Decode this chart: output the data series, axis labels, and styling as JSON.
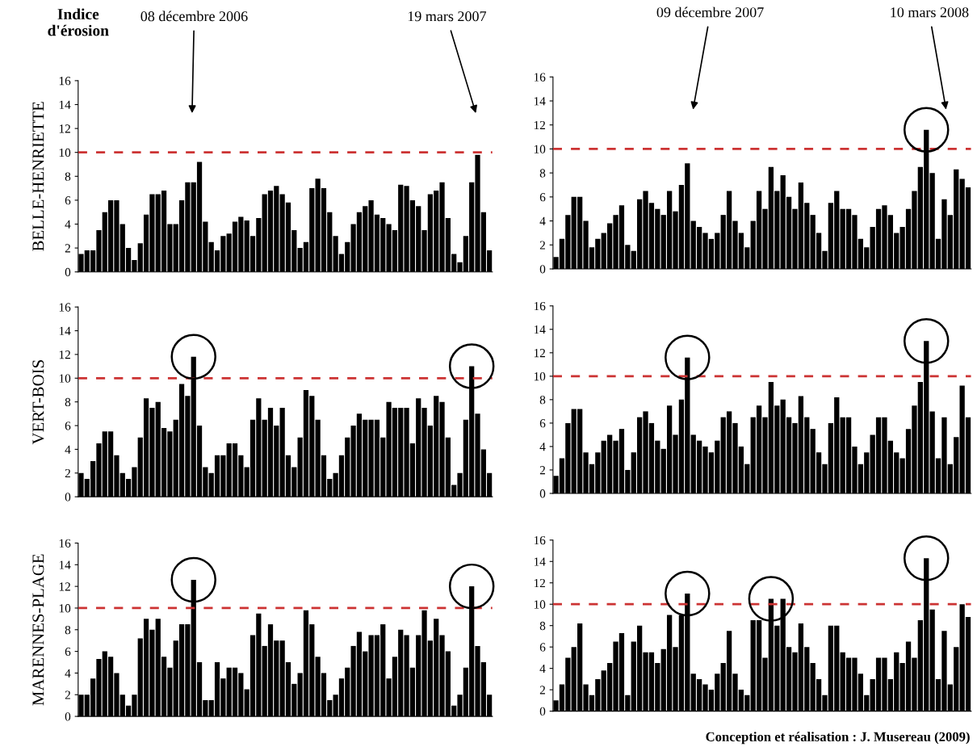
{
  "chart_data": [
    {
      "type": "bar",
      "title": "Indice\nd'érosion",
      "ylabel": "BELLE-HENRIETTE",
      "annotations": [
        "08 décembre 2006",
        "19 mars 2007"
      ],
      "categories": [
        null,
        null,
        null,
        null,
        null,
        null,
        null,
        null,
        null,
        null,
        null,
        null,
        null,
        null,
        null,
        null,
        null,
        null,
        null,
        null,
        null,
        null,
        null,
        null,
        null,
        null,
        null,
        null,
        null,
        null,
        null,
        null,
        null,
        null,
        null,
        null,
        null,
        null,
        null,
        null,
        null,
        null,
        null,
        null,
        null,
        null,
        null,
        null,
        null,
        null,
        null,
        null,
        null,
        null,
        null,
        null,
        null,
        null,
        null,
        null,
        null,
        null,
        null,
        null,
        null,
        null,
        null,
        null,
        null,
        null
      ],
      "values": [
        1.5,
        1.8,
        1.8,
        3.5,
        5.0,
        6.0,
        6.0,
        4.0,
        2.0,
        1.0,
        2.4,
        4.8,
        6.5,
        6.5,
        6.8,
        4.0,
        4.0,
        6.0,
        7.5,
        7.5,
        9.2,
        4.2,
        2.5,
        1.8,
        3.0,
        3.2,
        4.2,
        4.6,
        4.3,
        3.0,
        4.5,
        6.5,
        6.8,
        7.2,
        6.5,
        5.8,
        3.5,
        2.0,
        2.5,
        7.0,
        7.8,
        7.0,
        5.0,
        3.0,
        1.5,
        2.5,
        4.0,
        5.0,
        5.5,
        6.0,
        4.8,
        4.5,
        4.0,
        3.5,
        7.3,
        7.2,
        6.0,
        5.5,
        3.5,
        6.5,
        6.8,
        7.5,
        4.5,
        1.5,
        0.8,
        3.0,
        7.5,
        9.8,
        5.0,
        1.8
      ],
      "color": "#000000",
      "ylim": [
        0,
        16
      ],
      "yticks": [
        0,
        2,
        4,
        6,
        8,
        10,
        12,
        14,
        16
      ],
      "tick_labels": "y",
      "ref_lines": [
        {
          "axis": "y",
          "value": 10,
          "color": "#cc3333",
          "line_style": "dashed"
        }
      ]
    },
    {
      "type": "bar",
      "ylabel": "VERT-BOIS",
      "categories": [
        null,
        null,
        null,
        null,
        null,
        null,
        null,
        null,
        null,
        null,
        null,
        null,
        null,
        null,
        null,
        null,
        null,
        null,
        null,
        null,
        null,
        null,
        null,
        null,
        null,
        null,
        null,
        null,
        null,
        null,
        null,
        null,
        null,
        null,
        null,
        null,
        null,
        null,
        null,
        null,
        null,
        null,
        null,
        null,
        null,
        null,
        null,
        null,
        null,
        null,
        null,
        null,
        null,
        null,
        null,
        null,
        null,
        null,
        null,
        null,
        null,
        null,
        null,
        null,
        null,
        null,
        null,
        null,
        null,
        null
      ],
      "values": [
        2.0,
        1.5,
        3.0,
        4.5,
        5.5,
        5.5,
        3.5,
        2.0,
        1.5,
        2.5,
        5.0,
        8.3,
        7.5,
        8.0,
        5.8,
        5.5,
        6.5,
        9.5,
        8.5,
        11.8,
        6.0,
        2.5,
        2.0,
        3.5,
        3.5,
        4.5,
        4.5,
        3.5,
        2.5,
        6.5,
        8.3,
        6.5,
        7.5,
        6.0,
        7.5,
        3.5,
        2.5,
        5.0,
        9.0,
        8.5,
        6.5,
        3.5,
        1.5,
        2.0,
        3.5,
        5.0,
        6.0,
        7.0,
        6.5,
        6.5,
        6.5,
        5.0,
        8.0,
        7.5,
        7.5,
        7.5,
        4.5,
        8.3,
        7.5,
        6.0,
        8.5,
        8.0,
        5.0,
        1.0,
        2.0,
        6.5,
        11.0,
        7.0,
        4.0,
        2.0
      ],
      "color": "#000000",
      "ylim": [
        0,
        16
      ],
      "yticks": [
        0,
        2,
        4,
        6,
        8,
        10,
        12,
        14,
        16
      ],
      "tick_labels": "y",
      "ref_lines": [
        {
          "axis": "y",
          "value": 10,
          "color": "#cc3333",
          "line_style": "dashed"
        }
      ]
    },
    {
      "type": "bar",
      "ylabel": "MARENNES-PLAGE",
      "categories": [
        null,
        null,
        null,
        null,
        null,
        null,
        null,
        null,
        null,
        null,
        null,
        null,
        null,
        null,
        null,
        null,
        null,
        null,
        null,
        null,
        null,
        null,
        null,
        null,
        null,
        null,
        null,
        null,
        null,
        null,
        null,
        null,
        null,
        null,
        null,
        null,
        null,
        null,
        null,
        null,
        null,
        null,
        null,
        null,
        null,
        null,
        null,
        null,
        null,
        null,
        null,
        null,
        null,
        null,
        null,
        null,
        null,
        null,
        null,
        null,
        null,
        null,
        null,
        null,
        null,
        null,
        null,
        null,
        null,
        null
      ],
      "values": [
        2.0,
        2.0,
        3.5,
        5.3,
        6.0,
        5.5,
        4.0,
        2.0,
        1.0,
        2.0,
        7.2,
        9.0,
        8.0,
        9.0,
        5.5,
        4.5,
        7.0,
        8.5,
        8.5,
        12.6,
        5.0,
        1.5,
        1.5,
        5.0,
        3.5,
        4.5,
        4.5,
        4.0,
        2.5,
        7.5,
        9.5,
        6.5,
        8.5,
        7.0,
        7.0,
        5.0,
        3.0,
        4.0,
        9.8,
        8.5,
        5.5,
        4.0,
        1.5,
        2.0,
        3.5,
        4.5,
        6.5,
        7.8,
        6.0,
        7.5,
        7.5,
        8.5,
        3.5,
        5.5,
        8.0,
        7.5,
        4.5,
        7.5,
        9.8,
        7.0,
        9.0,
        7.5,
        6.0,
        1.0,
        2.0,
        4.5,
        12.0,
        6.5,
        5.0,
        2.0
      ],
      "color": "#000000",
      "ylim": [
        0,
        16
      ],
      "yticks": [
        0,
        2,
        4,
        6,
        8,
        10,
        12,
        14,
        16
      ],
      "tick_labels": "y",
      "ref_lines": [
        {
          "axis": "y",
          "value": 10,
          "color": "#cc3333",
          "line_style": "dashed"
        }
      ]
    },
    {
      "type": "bar",
      "annotations": [
        "09 décembre 2007",
        "10 mars 2008"
      ],
      "categories": [
        null,
        null,
        null,
        null,
        null,
        null,
        null,
        null,
        null,
        null,
        null,
        null,
        null,
        null,
        null,
        null,
        null,
        null,
        null,
        null,
        null,
        null,
        null,
        null,
        null,
        null,
        null,
        null,
        null,
        null,
        null,
        null,
        null,
        null,
        null,
        null,
        null,
        null,
        null,
        null,
        null,
        null,
        null,
        null,
        null,
        null,
        null,
        null,
        null,
        null,
        null,
        null,
        null,
        null,
        null,
        null,
        null,
        null,
        null,
        null,
        null,
        null,
        null,
        null,
        null,
        null,
        null,
        null,
        null,
        null
      ],
      "values": [
        1.0,
        2.5,
        4.5,
        6.0,
        6.0,
        4.0,
        1.8,
        2.5,
        3.0,
        3.8,
        4.5,
        5.3,
        2.0,
        1.5,
        5.8,
        6.5,
        5.5,
        5.0,
        4.5,
        6.5,
        4.8,
        7.0,
        8.8,
        4.0,
        3.5,
        3.0,
        2.5,
        3.0,
        4.5,
        6.5,
        4.0,
        3.0,
        1.8,
        4.0,
        6.5,
        5.0,
        8.5,
        6.5,
        7.8,
        6.0,
        5.0,
        7.2,
        5.5,
        4.5,
        3.0,
        1.5,
        5.5,
        6.5,
        5.0,
        5.0,
        4.5,
        2.5,
        1.8,
        3.5,
        5.0,
        5.3,
        4.5,
        3.0,
        3.5,
        5.0,
        6.5,
        8.5,
        11.6,
        8.0,
        2.5,
        5.8,
        4.5,
        8.3,
        7.5,
        6.8
      ],
      "color": "#000000",
      "ylim": [
        0,
        16
      ],
      "yticks": [
        0,
        2,
        4,
        6,
        8,
        10,
        12,
        14,
        16
      ],
      "tick_labels": "y",
      "ref_lines": [
        {
          "axis": "y",
          "value": 10,
          "color": "#cc3333",
          "line_style": "dashed"
        }
      ]
    },
    {
      "type": "bar",
      "categories": [
        null,
        null,
        null,
        null,
        null,
        null,
        null,
        null,
        null,
        null,
        null,
        null,
        null,
        null,
        null,
        null,
        null,
        null,
        null,
        null,
        null,
        null,
        null,
        null,
        null,
        null,
        null,
        null,
        null,
        null,
        null,
        null,
        null,
        null,
        null,
        null,
        null,
        null,
        null,
        null,
        null,
        null,
        null,
        null,
        null,
        null,
        null,
        null,
        null,
        null,
        null,
        null,
        null,
        null,
        null,
        null,
        null,
        null,
        null,
        null,
        null,
        null,
        null,
        null,
        null,
        null,
        null,
        null,
        null,
        null
      ],
      "values": [
        1.5,
        3.0,
        6.0,
        7.2,
        7.2,
        3.5,
        2.5,
        3.5,
        4.5,
        5.0,
        4.5,
        5.5,
        2.0,
        3.5,
        6.5,
        7.0,
        6.0,
        4.5,
        3.8,
        7.5,
        5.0,
        8.0,
        11.6,
        5.0,
        4.5,
        4.0,
        3.5,
        4.5,
        6.5,
        7.0,
        6.0,
        4.0,
        2.5,
        6.5,
        7.5,
        6.5,
        9.5,
        7.5,
        8.0,
        6.5,
        6.0,
        8.3,
        6.5,
        5.5,
        3.5,
        2.5,
        6.0,
        8.2,
        6.5,
        6.5,
        4.0,
        2.5,
        3.5,
        5.0,
        6.5,
        6.5,
        4.5,
        3.5,
        3.0,
        5.5,
        7.5,
        9.5,
        13.0,
        7.0,
        3.0,
        6.5,
        2.5,
        4.8,
        9.2,
        6.5
      ],
      "color": "#000000",
      "ylim": [
        0,
        16
      ],
      "yticks": [
        0,
        2,
        4,
        6,
        8,
        10,
        12,
        14,
        16
      ],
      "tick_labels": "y",
      "ref_lines": [
        {
          "axis": "y",
          "value": 10,
          "color": "#cc3333",
          "line_style": "dashed"
        }
      ]
    },
    {
      "type": "bar",
      "annotations": [
        "Conception et réalisation : J. Musereau (2009)"
      ],
      "categories": [
        null,
        null,
        null,
        null,
        null,
        null,
        null,
        null,
        null,
        null,
        null,
        null,
        null,
        null,
        null,
        null,
        null,
        null,
        null,
        null,
        null,
        null,
        null,
        null,
        null,
        null,
        null,
        null,
        null,
        null,
        null,
        null,
        null,
        null,
        null,
        null,
        null,
        null,
        null,
        null,
        null,
        null,
        null,
        null,
        null,
        null,
        null,
        null,
        null,
        null,
        null,
        null,
        null,
        null,
        null,
        null,
        null,
        null,
        null,
        null,
        null,
        null,
        null,
        null,
        null,
        null,
        null,
        null,
        null,
        null
      ],
      "values": [
        1.0,
        2.5,
        5.0,
        6.0,
        8.2,
        2.5,
        1.5,
        3.0,
        3.8,
        4.5,
        6.5,
        7.3,
        1.5,
        6.5,
        8.0,
        5.5,
        5.5,
        4.5,
        5.8,
        9.0,
        6.0,
        9.0,
        11.0,
        3.5,
        3.0,
        2.5,
        2.0,
        3.5,
        4.5,
        7.5,
        3.5,
        2.0,
        1.5,
        8.5,
        8.5,
        5.0,
        10.5,
        8.0,
        10.5,
        6.0,
        5.5,
        8.2,
        6.0,
        4.5,
        3.0,
        1.5,
        8.0,
        8.0,
        5.5,
        5.0,
        5.0,
        3.5,
        1.5,
        3.0,
        5.0,
        5.0,
        3.0,
        5.5,
        4.5,
        6.5,
        5.0,
        8.5,
        14.3,
        9.5,
        3.0,
        7.5,
        2.5,
        6.0,
        10.0,
        8.8
      ],
      "color": "#000000",
      "ylim": [
        0,
        16
      ],
      "yticks": [
        0,
        2,
        4,
        6,
        8,
        10,
        12,
        14,
        16
      ],
      "tick_labels": "y",
      "ref_lines": [
        {
          "axis": "y",
          "value": 10,
          "color": "#cc3333",
          "line_style": "dashed"
        }
      ]
    }
  ]
}
